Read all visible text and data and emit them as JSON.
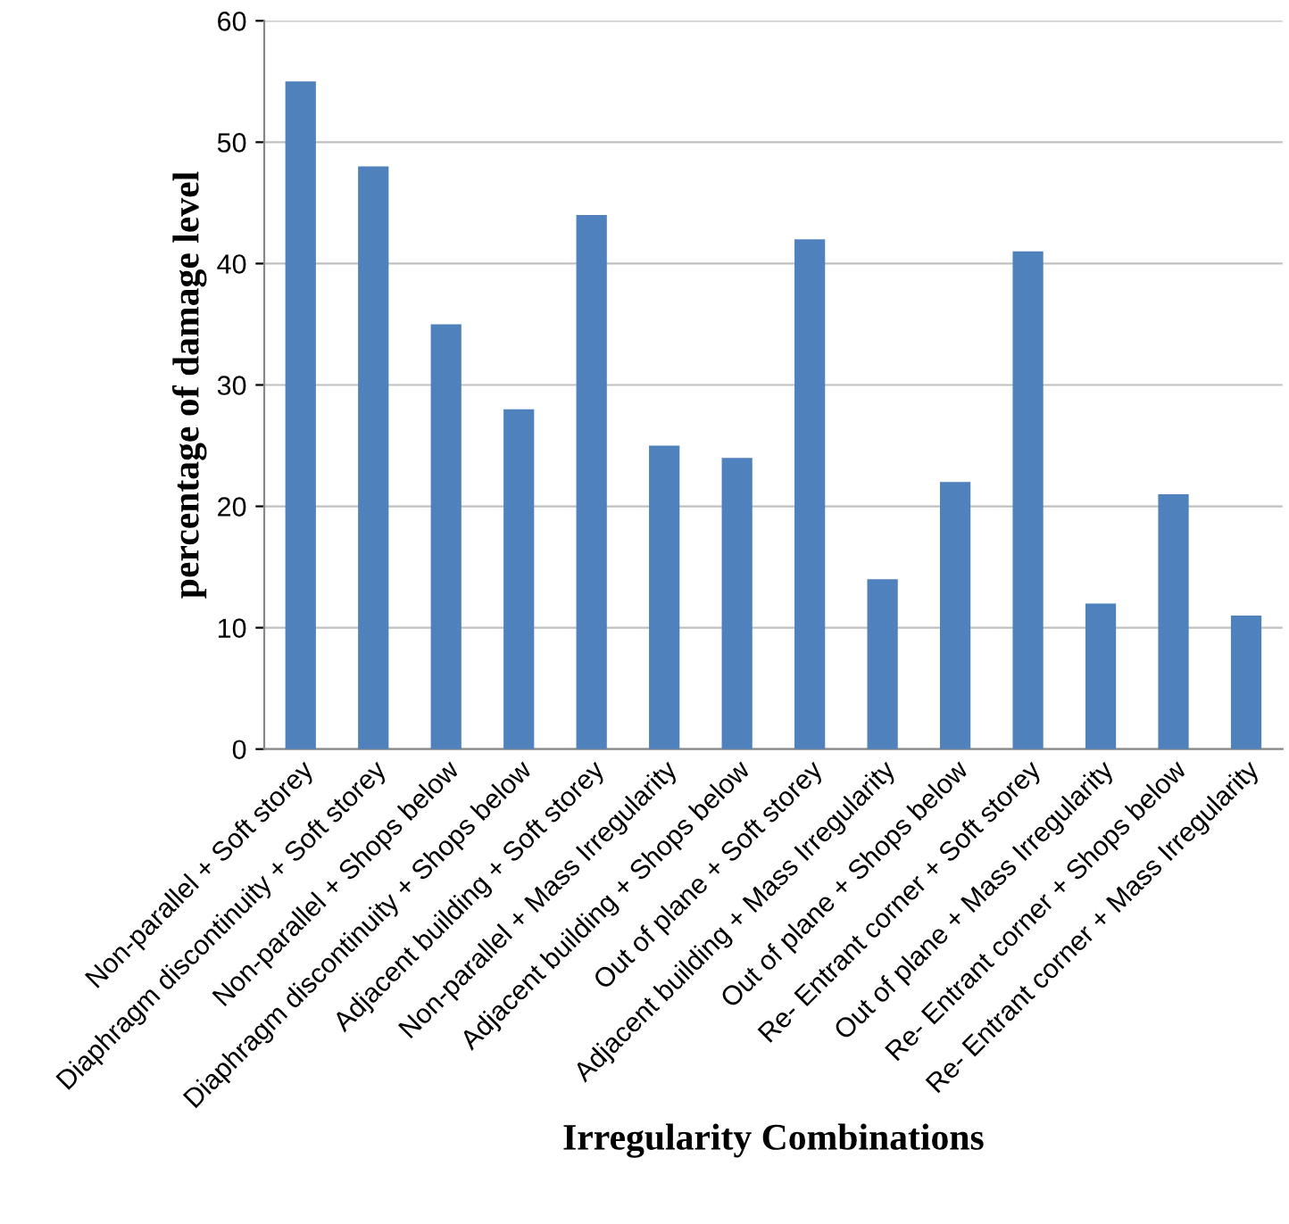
{
  "chart_data": {
    "type": "bar",
    "xlabel": "Irregularity Combinations",
    "ylabel": "percentage of damage level",
    "categories": [
      "Non-parallel + Soft storey",
      "Diaphragm discontinuity + Soft storey",
      "Non-parallel + Shops below",
      "Diaphragm discontinuity + Shops below",
      "Adjacent building + Soft storey",
      "Non-parallel + Mass Irregularity",
      "Adjacent building + Shops below",
      "Out of plane + Soft storey",
      "Adjacent building + Mass Irregularity",
      "Out of plane + Shops below",
      "Re- Entrant corner + Soft storey",
      "Out of plane + Mass Irregularity",
      "Re- Entrant corner + Shops below",
      "Re- Entrant corner + Mass Irregularity"
    ],
    "values": [
      55,
      48,
      35,
      28,
      44,
      25,
      24,
      42,
      14,
      22,
      41,
      12,
      21,
      11
    ],
    "color": "#4f81bd",
    "ylim": [
      0,
      60
    ],
    "yticks": [
      0,
      10,
      20,
      30,
      40,
      50,
      60
    ],
    "grid": "y",
    "legend": false
  }
}
